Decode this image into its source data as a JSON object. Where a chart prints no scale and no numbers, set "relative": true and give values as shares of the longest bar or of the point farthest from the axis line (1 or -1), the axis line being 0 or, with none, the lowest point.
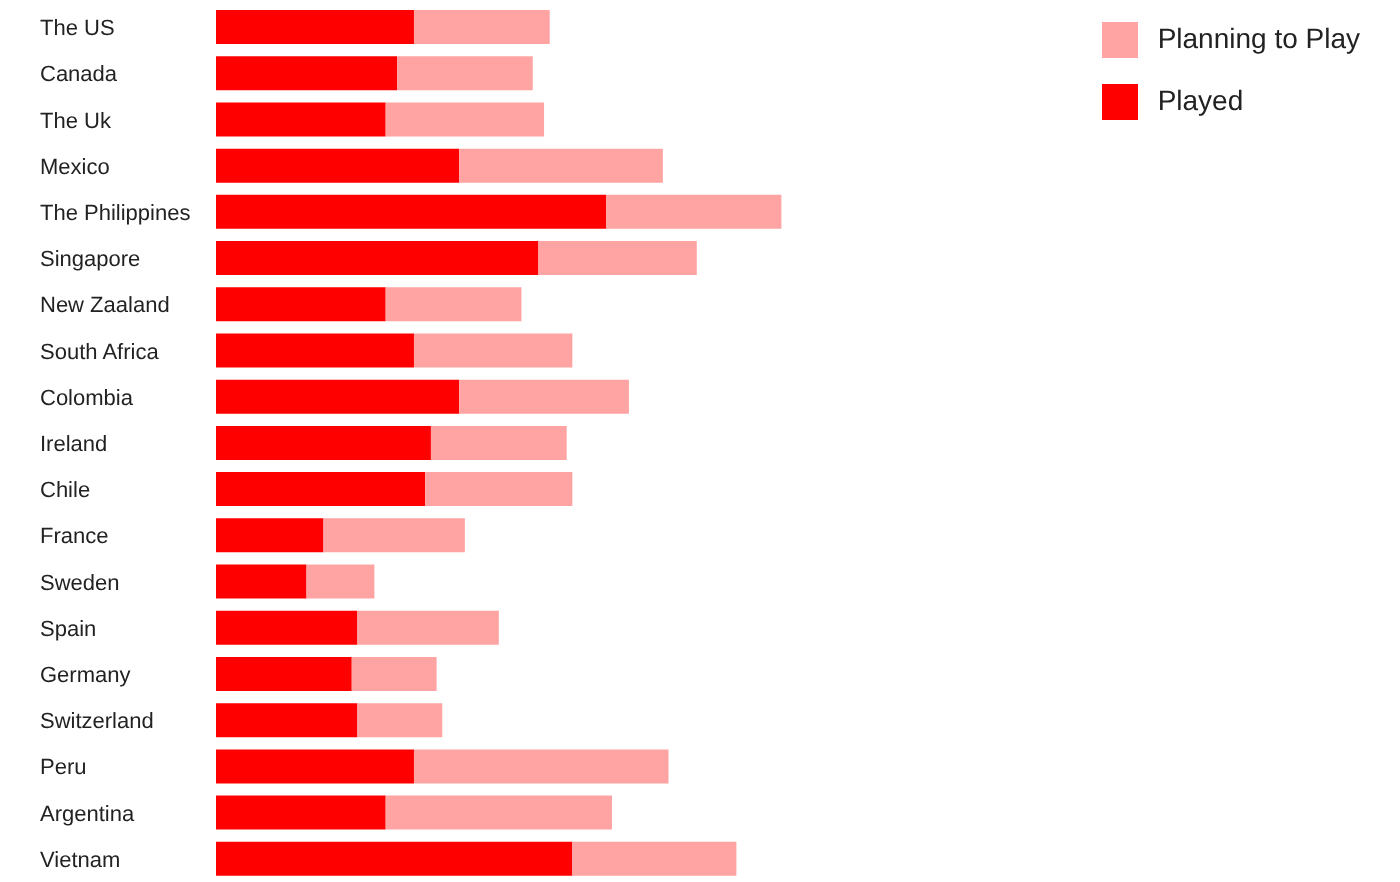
{
  "chart_data": {
    "type": "bar",
    "orientation": "horizontal",
    "stacked": true,
    "relative": true,
    "legend": "top right",
    "categories": [
      "The US",
      "Canada",
      "The Uk",
      "Mexico",
      "The Philippines",
      "Singapore",
      "New Zaaland",
      "South Africa",
      "Colombia",
      "Ireland",
      "Chile",
      "France",
      "Sweden",
      "Spain",
      "Germany",
      "Switzerland",
      "Peru",
      "Argentina",
      "Vietnam"
    ],
    "series": [
      {
        "name": "Played",
        "color": "#ff0000",
        "values": [
          0.35,
          0.32,
          0.3,
          0.43,
          0.69,
          0.57,
          0.3,
          0.35,
          0.43,
          0.38,
          0.37,
          0.19,
          0.16,
          0.25,
          0.24,
          0.25,
          0.35,
          0.3,
          0.63
        ]
      },
      {
        "name": "Planning to Play",
        "color": "#ffa3a3",
        "values": [
          0.24,
          0.24,
          0.28,
          0.36,
          0.31,
          0.28,
          0.24,
          0.28,
          0.3,
          0.24,
          0.26,
          0.25,
          0.12,
          0.25,
          0.15,
          0.15,
          0.45,
          0.4,
          0.29
        ]
      }
    ]
  }
}
